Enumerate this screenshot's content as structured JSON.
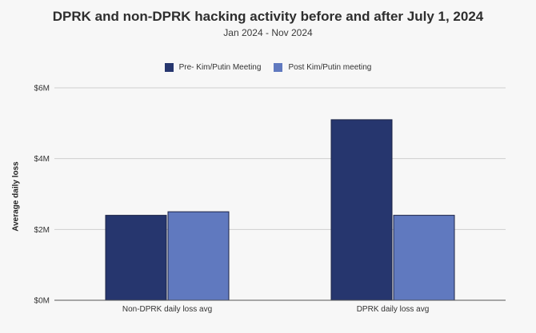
{
  "chart_data": {
    "type": "bar",
    "title": "DPRK and non-DPRK hacking activity before and after July 1, 2024",
    "subtitle": "Jan 2024 - Nov 2024",
    "xlabel": "",
    "ylabel": "Average daily loss",
    "categories": [
      "Non-DPRK daily loss avg",
      "DPRK daily loss avg"
    ],
    "series": [
      {
        "name": "Pre- Kim/Putin Meeting",
        "color": "#26366e",
        "values": [
          2.4,
          5.1
        ]
      },
      {
        "name": "Post Kim/Putin meeting",
        "color": "#6079bf",
        "values": [
          2.5,
          2.4
        ]
      }
    ],
    "ylim": [
      0,
      6
    ],
    "yticks": [
      0,
      2,
      4,
      6
    ],
    "ytick_labels": [
      "$0M",
      "$2M",
      "$4M",
      "$6M"
    ],
    "grid": true,
    "legend_position": "top-center"
  }
}
